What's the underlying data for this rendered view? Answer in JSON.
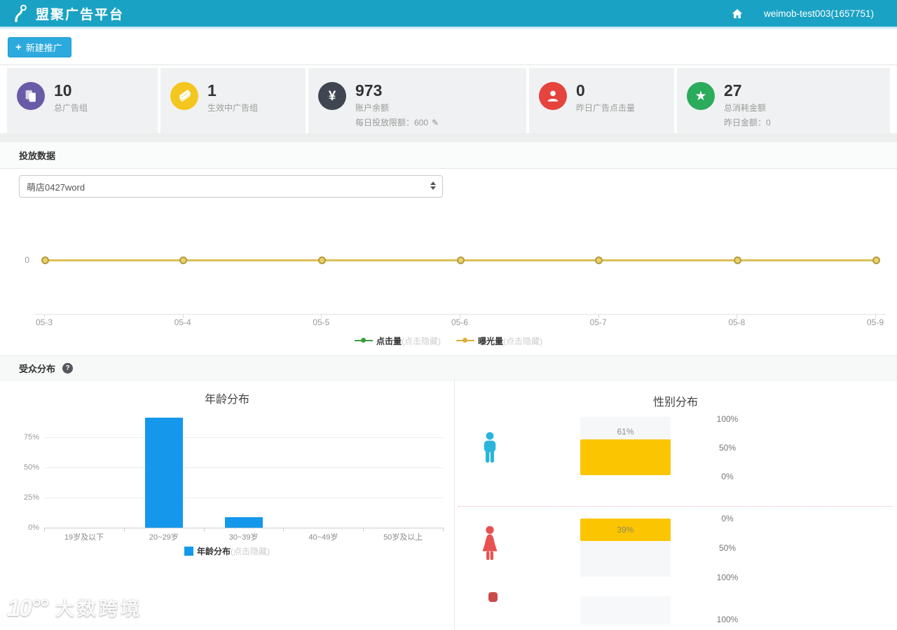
{
  "header": {
    "title": "盟聚广告平台",
    "account": "weimob-test003(1657751)"
  },
  "toolbar": {
    "plus": "+",
    "new_campaign": "新建推广"
  },
  "stats": {
    "cards": [
      {
        "value": "10",
        "label": "总广告组",
        "icon": "pages-icon",
        "icon_color": "#6a5ba7"
      },
      {
        "value": "1",
        "label": "生效中广告组",
        "icon": "ticket-icon",
        "icon_color": "#f3c71f"
      },
      {
        "value": "973",
        "label": "账户余额",
        "sub": "每日投放限额：600",
        "icon": "yen-icon",
        "icon_color": "#3f4551",
        "icon_glyph": "¥"
      },
      {
        "value": "0",
        "label": "昨日广告点击量",
        "icon": "user-icon",
        "icon_color": "#e5433e"
      },
      {
        "value": "27",
        "label": "总消耗金额",
        "sub": "昨日金额：0",
        "icon": "star-icon",
        "icon_color": "#2bab5c",
        "icon_glyph": "★"
      }
    ]
  },
  "delivery": {
    "section_title": "投放数据",
    "campaign_select": "萌店0427word"
  },
  "audience": {
    "section_title": "受众分布",
    "help": "?"
  },
  "watermark": {
    "logo": "10°°",
    "text": "大数跨境"
  },
  "chart_data": [
    {
      "type": "line",
      "x": [
        "05-3",
        "05-4",
        "05-5",
        "05-6",
        "05-7",
        "05-8",
        "05-9"
      ],
      "series": [
        {
          "name": "点击量",
          "legend_suffix": "(点击隐藏)",
          "color": "#3b9e3f",
          "values": [
            0,
            0,
            0,
            0,
            0,
            0,
            0
          ],
          "hidden": true
        },
        {
          "name": "曝光量",
          "legend_suffix": "(点击隐藏)",
          "color": "#d9ae3c",
          "values": [
            0,
            0,
            0,
            0,
            0,
            0,
            0
          ],
          "hidden": false
        }
      ],
      "yticks": [
        "0"
      ],
      "line_color": "#dcbf58",
      "legend_position": "bottom",
      "grid": false
    },
    {
      "type": "bar",
      "title": "年龄分布",
      "categories": [
        "19岁及以下",
        "20~29岁",
        "30~39岁",
        "40~49岁",
        "50岁及以上"
      ],
      "values": [
        0,
        91,
        9,
        0,
        0
      ],
      "ylim": [
        0,
        100
      ],
      "yticks": [
        "0%",
        "25%",
        "50%",
        "75%"
      ],
      "bar_color": "#1598ec",
      "legend": {
        "name": "年龄分布",
        "suffix": "(点击隐藏)"
      },
      "legend_position": "bottom",
      "grid": true
    },
    {
      "type": "bar",
      "title": "性别分布",
      "subtype": "mirrored-percent-columns",
      "bar_color": "#fbc502",
      "rows": [
        {
          "icon": "male-icon",
          "icon_color": "#2ab5da",
          "value": 61,
          "value_label": "61%",
          "axis_labels": [
            "100%",
            "50%",
            "0%"
          ],
          "direction": "up"
        },
        {
          "icon": "female-icon",
          "icon_color": "#e85150",
          "value": 39,
          "value_label": "39%",
          "axis_labels": [
            "0%",
            "50%",
            "100%"
          ],
          "direction": "down"
        }
      ],
      "partial_row": {
        "axis_label": "100%"
      }
    }
  ]
}
